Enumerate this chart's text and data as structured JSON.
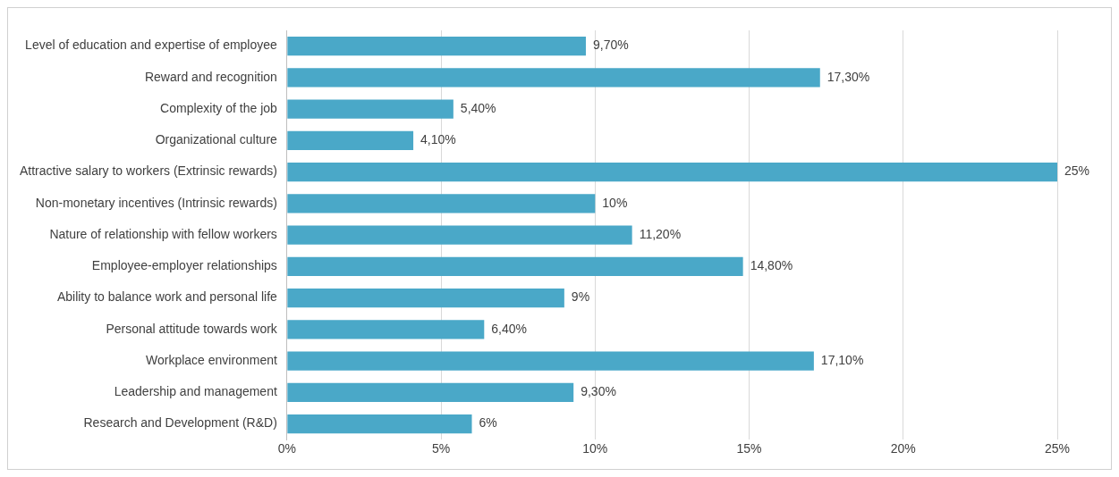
{
  "chart_data": {
    "type": "bar",
    "orientation": "horizontal",
    "categories": [
      "Level of education and expertise of employee",
      "Reward and recognition",
      "Complexity of the job",
      "Organizational culture",
      "Attractive salary to workers (Extrinsic rewards)",
      "Non-monetary incentives (Intrinsic rewards)",
      "Nature of relationship with fellow workers",
      "Employee-employer relationships",
      "Ability to balance work and personal life",
      "Personal attitude towards work",
      "Workplace environment",
      "Leadership and management",
      "Research and Development (R&D)"
    ],
    "values": [
      9.7,
      17.3,
      5.4,
      4.1,
      25,
      10,
      11.2,
      14.8,
      9,
      6.4,
      17.1,
      9.3,
      6
    ],
    "value_labels": [
      "9,70%",
      "17,30%",
      "5,40%",
      "4,10%",
      "25%",
      "10%",
      "11,20%",
      "14,80%",
      "9%",
      "6,40%",
      "17,10%",
      "9,30%",
      "6%"
    ],
    "color": "#4aa8c8",
    "xlim": [
      0,
      25
    ],
    "xticks": [
      {
        "value": 0,
        "label": "0%"
      },
      {
        "value": 5,
        "label": "5%"
      },
      {
        "value": 10,
        "label": "10%"
      },
      {
        "value": 15,
        "label": "15%"
      },
      {
        "value": 20,
        "label": "20%"
      },
      {
        "value": 25,
        "label": "25%"
      }
    ],
    "grid": "x",
    "legend": false
  }
}
